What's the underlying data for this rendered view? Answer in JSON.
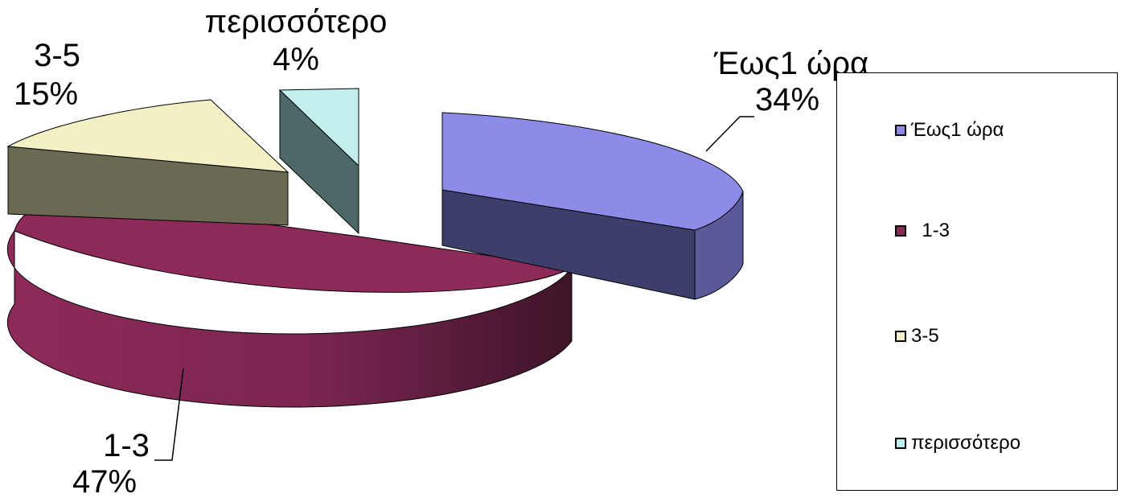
{
  "chart_data": {
    "type": "pie",
    "style": "3d-exploded",
    "labels": [
      "Έως1 ώρα",
      "  1-3",
      "3-5",
      "περισσότερο"
    ],
    "values": [
      34,
      47,
      15,
      4
    ],
    "value_labels": [
      "34%",
      "47%",
      "15%",
      "4%"
    ],
    "colors": [
      "#8c8ce8",
      "#8e2a5a",
      "#f2f0c4",
      "#c2eeee"
    ],
    "side_colors": [
      "#3e3e6a",
      "#7a2550",
      "#6a6a52",
      "#4e6868"
    ],
    "slice_labels": [
      "Έως1 ώρα",
      "1-3",
      "3-5",
      "περισσότερο"
    ],
    "legend_position": "right"
  }
}
